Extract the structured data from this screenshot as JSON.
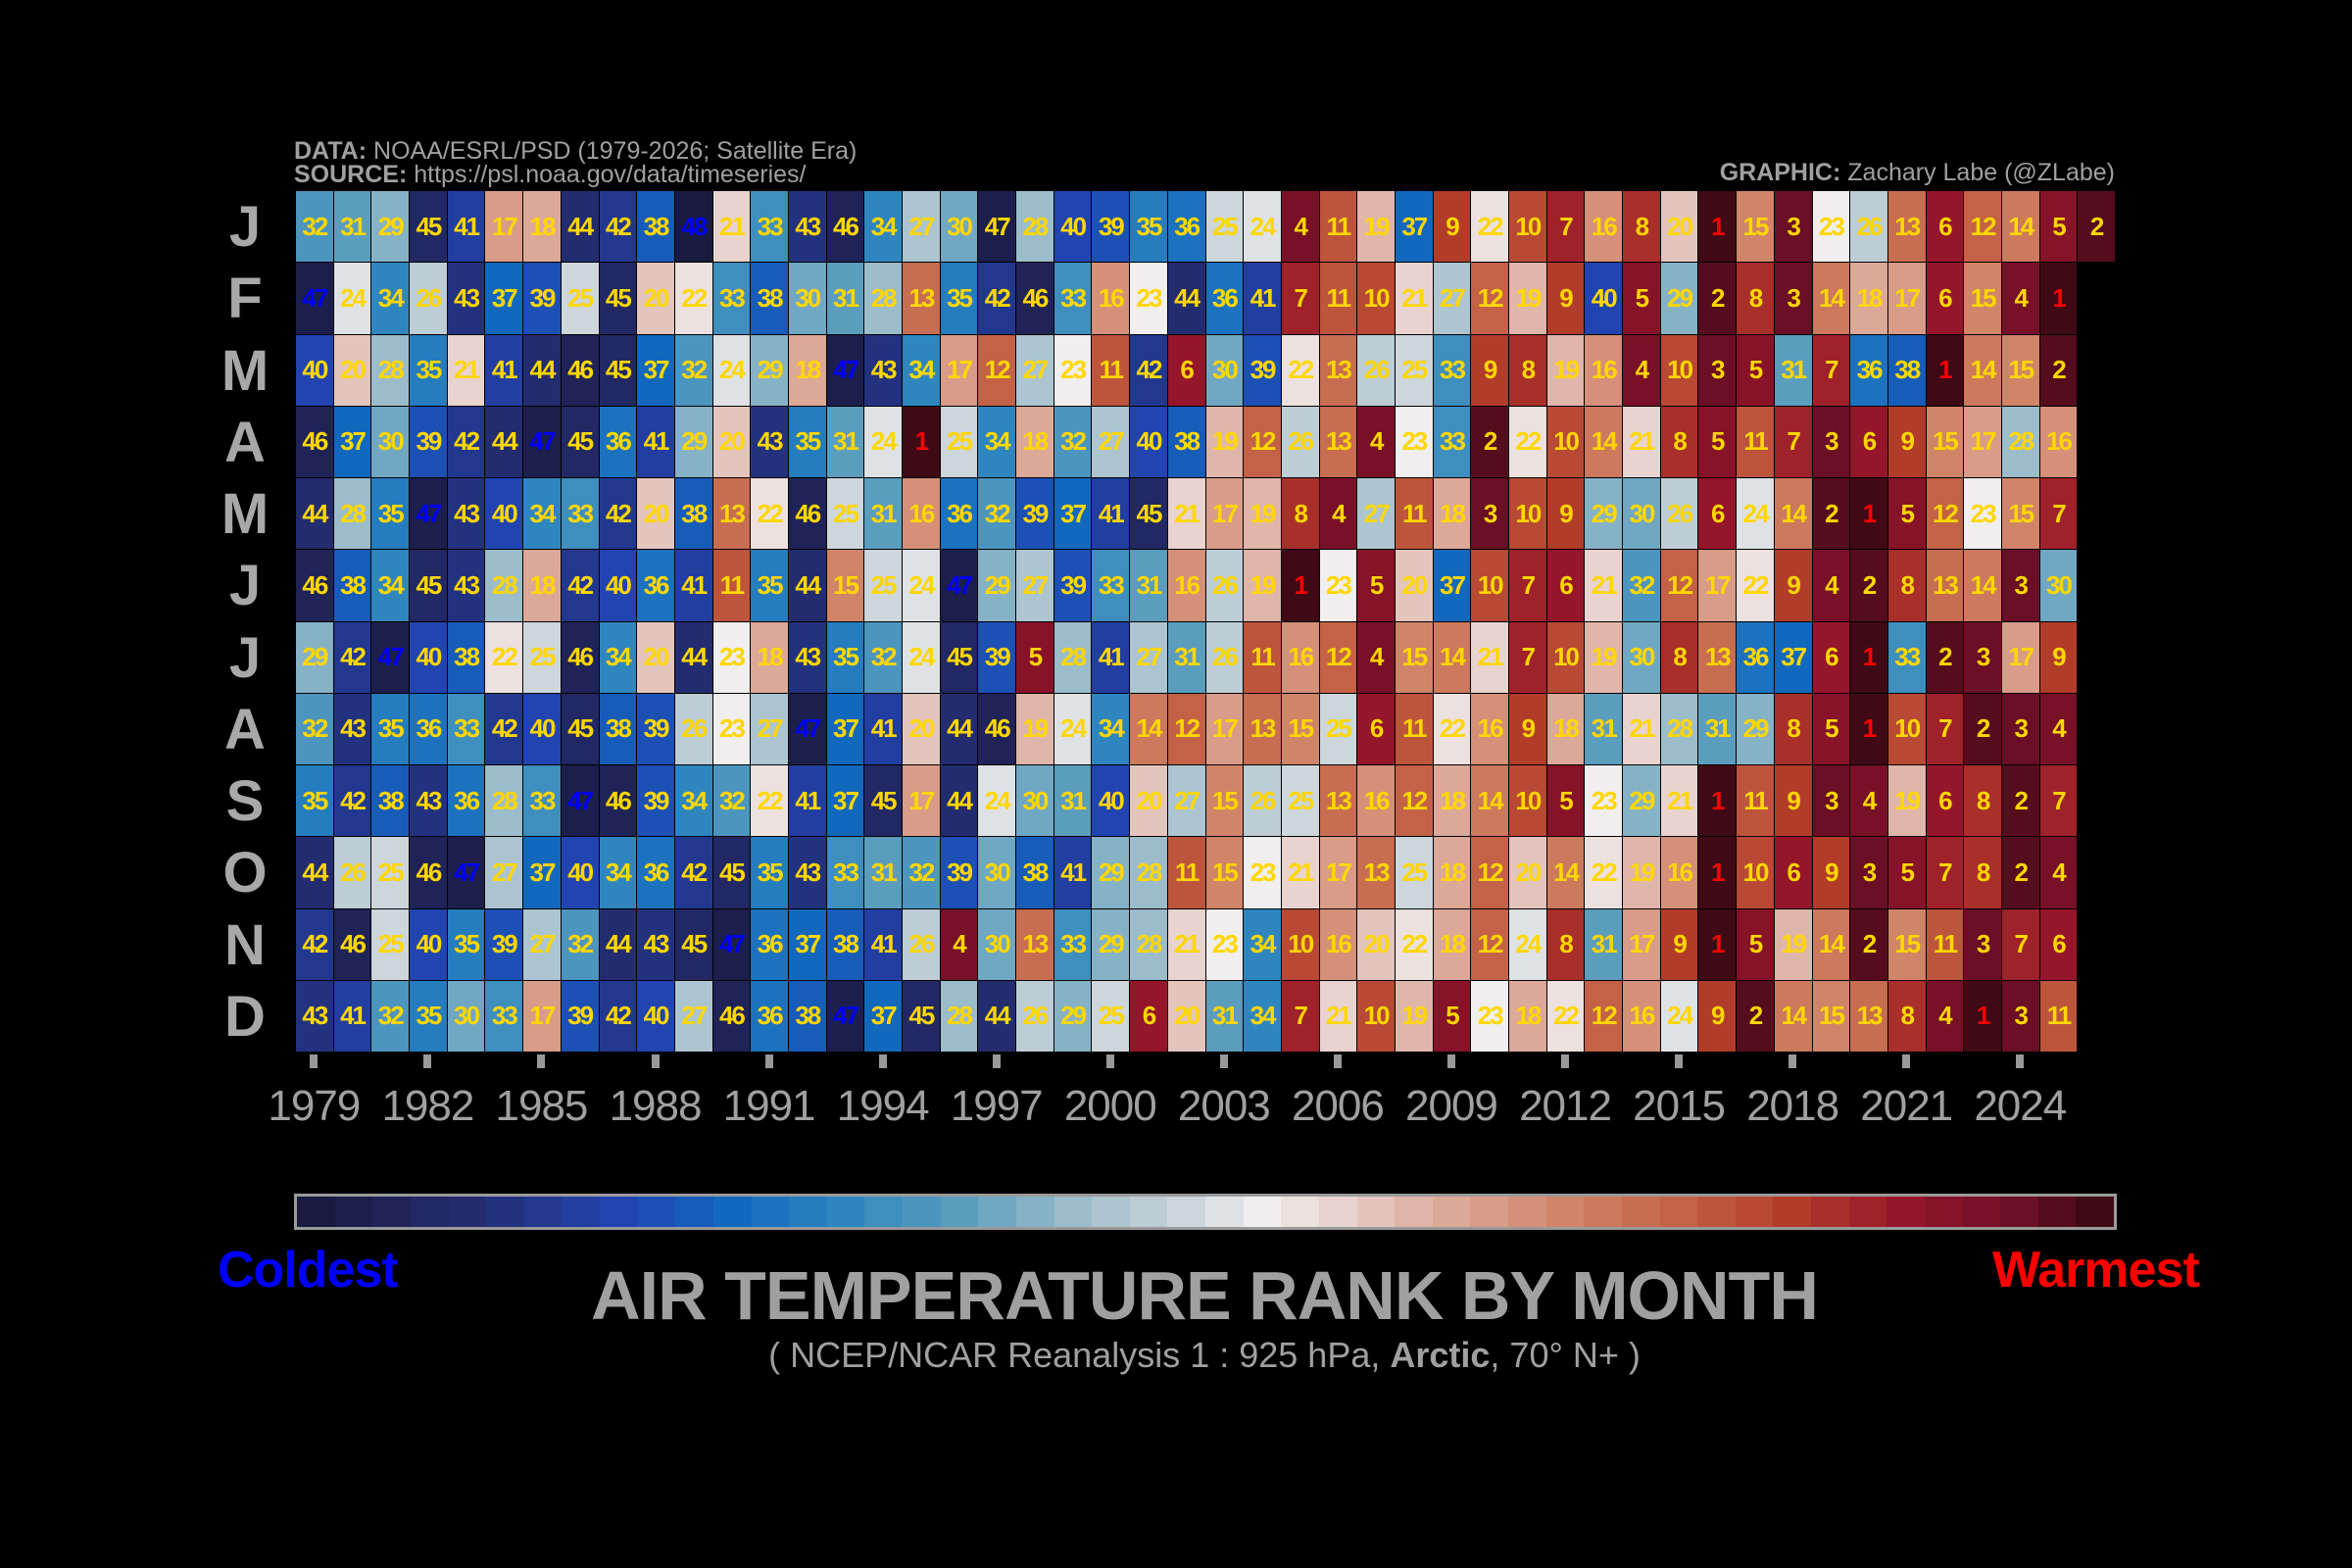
{
  "header": {
    "data_label": "DATA:",
    "data_text": "NOAA/ESRL/PSD (1979-2026; Satellite Era)",
    "source_label": "SOURCE:",
    "source_text": "https://psl.noaa.gov/data/timeseries/",
    "graphic_label": "GRAPHIC:",
    "graphic_text": "Zachary Labe (@ZLabe)"
  },
  "title": "AIR TEMPERATURE RANK BY MONTH",
  "subtitle": {
    "pre": "( NCEP/NCAR Reanalysis 1 : 925 hPa, ",
    "bold": "Arctic",
    "post": ", 70° N+ )"
  },
  "colorbar": {
    "left_label": "Coldest",
    "right_label": "Warmest",
    "left_color": "#0000ff",
    "right_color": "#ff0000"
  },
  "colors": {
    "text_default": "#ffd700",
    "text_coldest": "#0000ff",
    "text_warmest": "#ff0000",
    "background": "#000000"
  },
  "chart_data": {
    "type": "heatmap",
    "title": "AIR TEMPERATURE RANK BY MONTH",
    "xlabel": "",
    "ylabel": "",
    "colormap": "diverging blue (coldest, highest rank) to red (warmest, rank 1)",
    "first_year": 1979,
    "x_tick_labels": [
      "1979",
      "1982",
      "1985",
      "1988",
      "1991",
      "1994",
      "1997",
      "2000",
      "2003",
      "2006",
      "2009",
      "2012",
      "2015",
      "2018",
      "2021",
      "2024"
    ],
    "months": [
      "J",
      "F",
      "M",
      "A",
      "M",
      "J",
      "J",
      "A",
      "S",
      "O",
      "N",
      "D"
    ],
    "values": [
      [
        32,
        31,
        29,
        45,
        41,
        17,
        18,
        44,
        42,
        38,
        48,
        21,
        33,
        43,
        46,
        34,
        27,
        30,
        47,
        28,
        40,
        39,
        35,
        36,
        25,
        24,
        4,
        11,
        19,
        37,
        9,
        22,
        10,
        7,
        16,
        8,
        20,
        1,
        15,
        3,
        23,
        26,
        13,
        6,
        12,
        14,
        5,
        2
      ],
      [
        47,
        24,
        34,
        26,
        43,
        37,
        39,
        25,
        45,
        20,
        22,
        33,
        38,
        30,
        31,
        28,
        13,
        35,
        42,
        46,
        33,
        16,
        23,
        44,
        36,
        41,
        7,
        11,
        10,
        21,
        27,
        12,
        19,
        9,
        40,
        5,
        29,
        2,
        8,
        3,
        14,
        18,
        17,
        6,
        15,
        4,
        1
      ],
      [
        40,
        20,
        28,
        35,
        21,
        41,
        44,
        46,
        45,
        37,
        32,
        24,
        29,
        18,
        47,
        43,
        34,
        17,
        12,
        27,
        23,
        11,
        42,
        6,
        30,
        39,
        22,
        13,
        26,
        25,
        33,
        9,
        8,
        19,
        16,
        4,
        10,
        3,
        5,
        31,
        7,
        36,
        38,
        1,
        14,
        15,
        2
      ],
      [
        46,
        37,
        30,
        39,
        42,
        44,
        47,
        45,
        36,
        41,
        29,
        20,
        43,
        35,
        31,
        24,
        1,
        25,
        34,
        18,
        32,
        27,
        40,
        38,
        19,
        12,
        26,
        13,
        4,
        23,
        33,
        2,
        22,
        10,
        14,
        21,
        8,
        5,
        11,
        7,
        3,
        6,
        9,
        15,
        17,
        28,
        16
      ],
      [
        44,
        28,
        35,
        47,
        43,
        40,
        34,
        33,
        42,
        20,
        38,
        13,
        22,
        46,
        25,
        31,
        16,
        36,
        32,
        39,
        37,
        41,
        45,
        21,
        17,
        19,
        8,
        4,
        27,
        11,
        18,
        3,
        10,
        9,
        29,
        30,
        26,
        6,
        24,
        14,
        2,
        1,
        5,
        12,
        23,
        15,
        7
      ],
      [
        46,
        38,
        34,
        45,
        43,
        28,
        18,
        42,
        40,
        36,
        41,
        11,
        35,
        44,
        15,
        25,
        24,
        47,
        29,
        27,
        39,
        33,
        31,
        16,
        26,
        19,
        1,
        23,
        5,
        20,
        37,
        10,
        7,
        6,
        21,
        32,
        12,
        17,
        22,
        9,
        4,
        2,
        8,
        13,
        14,
        3,
        30
      ],
      [
        29,
        42,
        47,
        40,
        38,
        22,
        25,
        46,
        34,
        20,
        44,
        23,
        18,
        43,
        35,
        32,
        24,
        45,
        39,
        5,
        28,
        41,
        27,
        31,
        26,
        11,
        16,
        12,
        4,
        15,
        14,
        21,
        7,
        10,
        19,
        30,
        8,
        13,
        36,
        37,
        6,
        1,
        33,
        2,
        3,
        17,
        9
      ],
      [
        32,
        43,
        35,
        36,
        33,
        42,
        40,
        45,
        38,
        39,
        26,
        23,
        27,
        47,
        37,
        41,
        20,
        44,
        46,
        19,
        24,
        34,
        14,
        12,
        17,
        13,
        15,
        25,
        6,
        11,
        22,
        16,
        9,
        18,
        31,
        21,
        28,
        31,
        29,
        8,
        5,
        1,
        10,
        7,
        2,
        3,
        4
      ],
      [
        35,
        42,
        38,
        43,
        36,
        28,
        33,
        47,
        46,
        39,
        34,
        32,
        22,
        41,
        37,
        45,
        17,
        44,
        24,
        30,
        31,
        40,
        20,
        27,
        15,
        26,
        25,
        13,
        16,
        12,
        18,
        14,
        10,
        5,
        23,
        29,
        21,
        1,
        11,
        9,
        3,
        4,
        19,
        6,
        8,
        2,
        7
      ],
      [
        44,
        26,
        25,
        46,
        47,
        27,
        37,
        40,
        34,
        36,
        42,
        45,
        35,
        43,
        33,
        31,
        32,
        39,
        30,
        38,
        41,
        29,
        28,
        11,
        15,
        23,
        21,
        17,
        13,
        25,
        18,
        12,
        20,
        14,
        22,
        19,
        16,
        1,
        10,
        6,
        9,
        3,
        5,
        7,
        8,
        2,
        4
      ],
      [
        42,
        46,
        25,
        40,
        35,
        39,
        27,
        32,
        44,
        43,
        45,
        47,
        36,
        37,
        38,
        41,
        26,
        4,
        30,
        13,
        33,
        29,
        28,
        21,
        23,
        34,
        10,
        16,
        20,
        22,
        18,
        12,
        24,
        8,
        31,
        17,
        9,
        1,
        5,
        19,
        14,
        2,
        15,
        11,
        3,
        7,
        6
      ],
      [
        43,
        41,
        32,
        35,
        30,
        33,
        17,
        39,
        42,
        40,
        27,
        46,
        36,
        38,
        47,
        37,
        45,
        28,
        44,
        26,
        29,
        25,
        6,
        20,
        31,
        34,
        7,
        21,
        10,
        19,
        5,
        23,
        18,
        22,
        12,
        16,
        24,
        9,
        2,
        14,
        15,
        13,
        8,
        4,
        1,
        3,
        11
      ]
    ]
  }
}
